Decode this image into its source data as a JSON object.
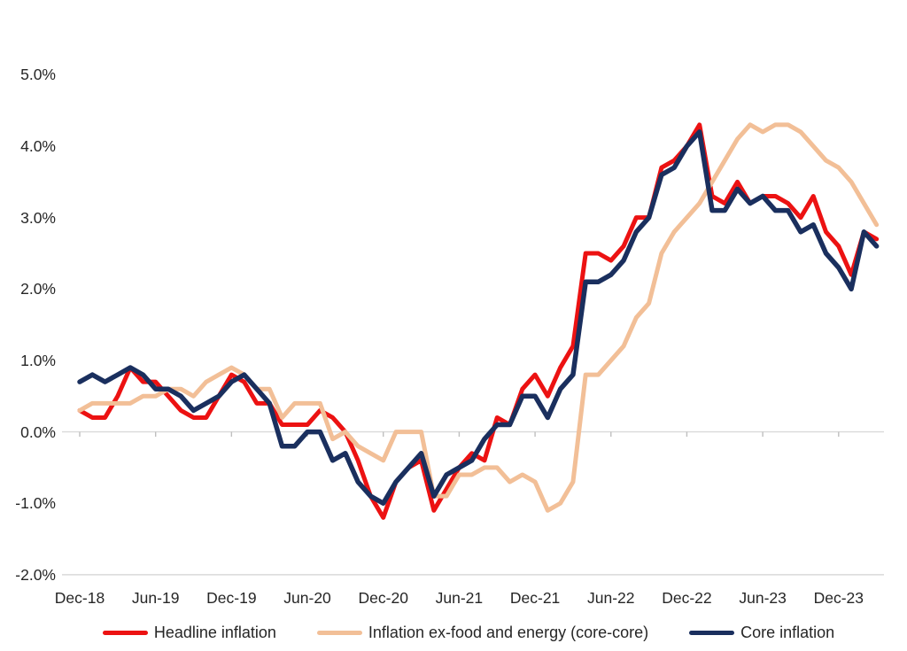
{
  "chart_data": {
    "type": "line",
    "title": "",
    "xlabel": "",
    "ylabel": "",
    "y_axis_format": "percent",
    "ylim": [
      -2.0,
      5.0
    ],
    "y_tick_step": 1.0,
    "y_tick_labels": [
      "5.0%",
      "4.0%",
      "3.0%",
      "2.0%",
      "1.0%",
      "0.0%",
      "-1.0%",
      "-2.0%"
    ],
    "x_tick_labels": [
      "Dec-18",
      "Jun-19",
      "Dec-19",
      "Jun-20",
      "Dec-20",
      "Jun-21",
      "Dec-21",
      "Jun-22",
      "Dec-22",
      "Jun-23",
      "Dec-23"
    ],
    "grid": "horizontal zero-line only, bottom chart border, small ticks on zero-line every 6 months",
    "legend_position": "bottom",
    "x": [
      "Dec-18",
      "Jan-19",
      "Feb-19",
      "Mar-19",
      "Apr-19",
      "May-19",
      "Jun-19",
      "Jul-19",
      "Aug-19",
      "Sep-19",
      "Oct-19",
      "Nov-19",
      "Dec-19",
      "Jan-20",
      "Feb-20",
      "Mar-20",
      "Apr-20",
      "May-20",
      "Jun-20",
      "Jul-20",
      "Aug-20",
      "Sep-20",
      "Oct-20",
      "Nov-20",
      "Dec-20",
      "Jan-21",
      "Feb-21",
      "Mar-21",
      "Apr-21",
      "May-21",
      "Jun-21",
      "Jul-21",
      "Aug-21",
      "Sep-21",
      "Oct-21",
      "Nov-21",
      "Dec-21",
      "Jan-22",
      "Feb-22",
      "Mar-22",
      "Apr-22",
      "May-22",
      "Jun-22",
      "Jul-22",
      "Aug-22",
      "Sep-22",
      "Oct-22",
      "Nov-22",
      "Dec-22",
      "Jan-23",
      "Feb-23",
      "Mar-23",
      "Apr-23",
      "May-23",
      "Jun-23",
      "Jul-23",
      "Aug-23",
      "Sep-23",
      "Oct-23",
      "Nov-23",
      "Dec-23",
      "Jan-24",
      "Feb-24",
      "Mar-24"
    ],
    "series": [
      {
        "name": "Headline inflation",
        "color": "#ec1212",
        "stroke_width": 5,
        "values": [
          0.3,
          0.2,
          0.2,
          0.5,
          0.9,
          0.7,
          0.7,
          0.5,
          0.3,
          0.2,
          0.2,
          0.5,
          0.8,
          0.7,
          0.4,
          0.4,
          0.1,
          0.1,
          0.1,
          0.3,
          0.2,
          0.0,
          -0.4,
          -0.9,
          -1.2,
          -0.7,
          -0.5,
          -0.4,
          -1.1,
          -0.8,
          -0.5,
          -0.3,
          -0.4,
          0.2,
          0.1,
          0.6,
          0.8,
          0.5,
          0.9,
          1.2,
          2.5,
          2.5,
          2.4,
          2.6,
          3.0,
          3.0,
          3.7,
          3.8,
          4.0,
          4.3,
          3.3,
          3.2,
          3.5,
          3.2,
          3.3,
          3.3,
          3.2,
          3.0,
          3.3,
          2.8,
          2.6,
          2.2,
          2.8,
          2.7
        ]
      },
      {
        "name": "Inflation ex-food and energy (core-core)",
        "color": "#f2bf97",
        "stroke_width": 5,
        "values": [
          0.3,
          0.4,
          0.4,
          0.4,
          0.4,
          0.5,
          0.5,
          0.6,
          0.6,
          0.5,
          0.7,
          0.8,
          0.9,
          0.8,
          0.6,
          0.6,
          0.2,
          0.4,
          0.4,
          0.4,
          -0.1,
          0.0,
          -0.2,
          -0.3,
          -0.4,
          0.0,
          0.0,
          0.0,
          -0.9,
          -0.9,
          -0.6,
          -0.6,
          -0.5,
          -0.5,
          -0.7,
          -0.6,
          -0.7,
          -1.1,
          -1.0,
          -0.7,
          0.8,
          0.8,
          1.0,
          1.2,
          1.6,
          1.8,
          2.5,
          2.8,
          3.0,
          3.2,
          3.5,
          3.8,
          4.1,
          4.3,
          4.2,
          4.3,
          4.3,
          4.2,
          4.0,
          3.8,
          3.7,
          3.5,
          3.2,
          2.9
        ]
      },
      {
        "name": "Core inflation",
        "color": "#1a2f5e",
        "stroke_width": 5.5,
        "values": [
          0.7,
          0.8,
          0.7,
          0.8,
          0.9,
          0.8,
          0.6,
          0.6,
          0.5,
          0.3,
          0.4,
          0.5,
          0.7,
          0.8,
          0.6,
          0.4,
          -0.2,
          -0.2,
          0.0,
          0.0,
          -0.4,
          -0.3,
          -0.7,
          -0.9,
          -1.0,
          -0.7,
          -0.5,
          -0.3,
          -0.9,
          -0.6,
          -0.5,
          -0.4,
          -0.1,
          0.1,
          0.1,
          0.5,
          0.5,
          0.2,
          0.6,
          0.8,
          2.1,
          2.1,
          2.2,
          2.4,
          2.8,
          3.0,
          3.6,
          3.7,
          4.0,
          4.2,
          3.1,
          3.1,
          3.4,
          3.2,
          3.3,
          3.1,
          3.1,
          2.8,
          2.9,
          2.5,
          2.3,
          2.0,
          2.8,
          2.6
        ]
      }
    ],
    "axis_colors": {
      "gridline": "#d9d9d9",
      "tick": "#bfbfbf",
      "label_text": "#262626"
    }
  }
}
